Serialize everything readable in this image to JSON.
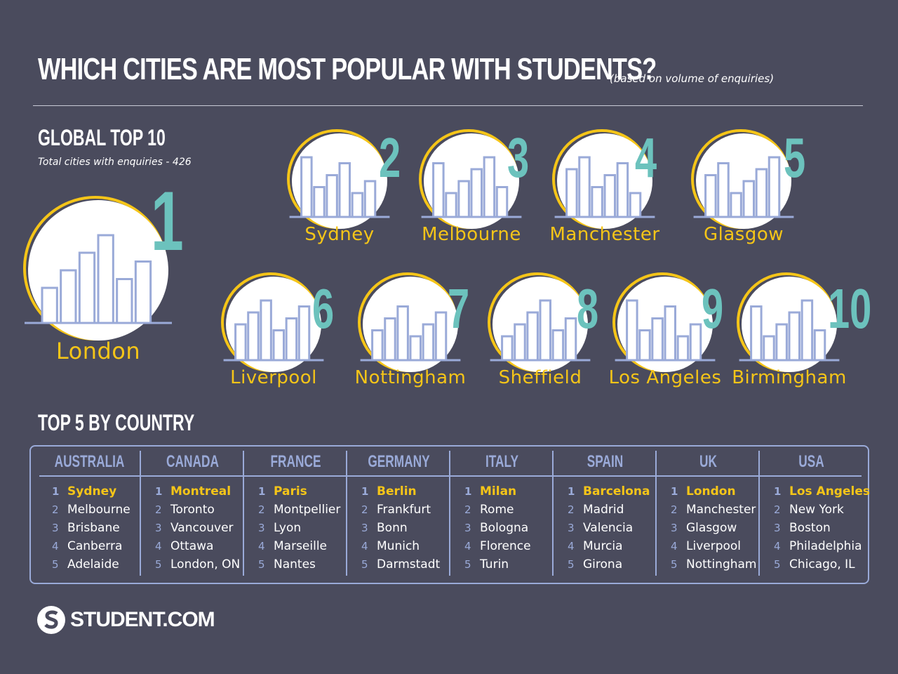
{
  "title": "WHICH CITIES ARE MOST POPULAR WITH STUDENTS?",
  "subtitle": "(based on volume of enquiries)",
  "global": {
    "heading": "GLOBAL TOP 10",
    "total": "Total cities with enquiries - 426",
    "cities": [
      {
        "rank": "1",
        "name": "London"
      },
      {
        "rank": "2",
        "name": "Sydney"
      },
      {
        "rank": "3",
        "name": "Melbourne"
      },
      {
        "rank": "4",
        "name": "Manchester"
      },
      {
        "rank": "5",
        "name": "Glasgow"
      },
      {
        "rank": "6",
        "name": "Liverpool"
      },
      {
        "rank": "7",
        "name": "Nottingham"
      },
      {
        "rank": "8",
        "name": "Sheffield"
      },
      {
        "rank": "9",
        "name": "Los Angeles"
      },
      {
        "rank": "10",
        "name": "Birmingham"
      }
    ]
  },
  "by_country": {
    "heading": "TOP 5 BY COUNTRY",
    "countries": [
      {
        "name": "AUSTRALIA",
        "cities": [
          "Sydney",
          "Melbourne",
          "Brisbane",
          "Canberra",
          "Adelaide"
        ]
      },
      {
        "name": "CANADA",
        "cities": [
          "Montreal",
          "Toronto",
          "Vancouver",
          "Ottawa",
          "London, ON"
        ]
      },
      {
        "name": "FRANCE",
        "cities": [
          "Paris",
          "Montpellier",
          "Lyon",
          "Marseille",
          "Nantes"
        ]
      },
      {
        "name": "GERMANY",
        "cities": [
          "Berlin",
          "Frankfurt",
          "Bonn",
          "Munich",
          "Darmstadt"
        ]
      },
      {
        "name": "ITALY",
        "cities": [
          "Milan",
          "Rome",
          "Bologna",
          "Florence",
          "Turin"
        ]
      },
      {
        "name": "SPAIN",
        "cities": [
          "Barcelona",
          "Madrid",
          "Valencia",
          "Murcia",
          "Girona"
        ]
      },
      {
        "name": "UK",
        "cities": [
          "London",
          "Manchester",
          "Glasgow",
          "Liverpool",
          "Nottingham"
        ]
      },
      {
        "name": "USA",
        "cities": [
          "Los Angeles",
          "New York",
          "Boston",
          "Philadelphia",
          "Chicago, IL"
        ]
      }
    ]
  },
  "logo": "STUDENT.COM",
  "colors": {
    "bg": "#4a4b5d",
    "yellow": "#f5c518",
    "teal": "#6cc2bd",
    "lavender": "#9aaad8"
  }
}
